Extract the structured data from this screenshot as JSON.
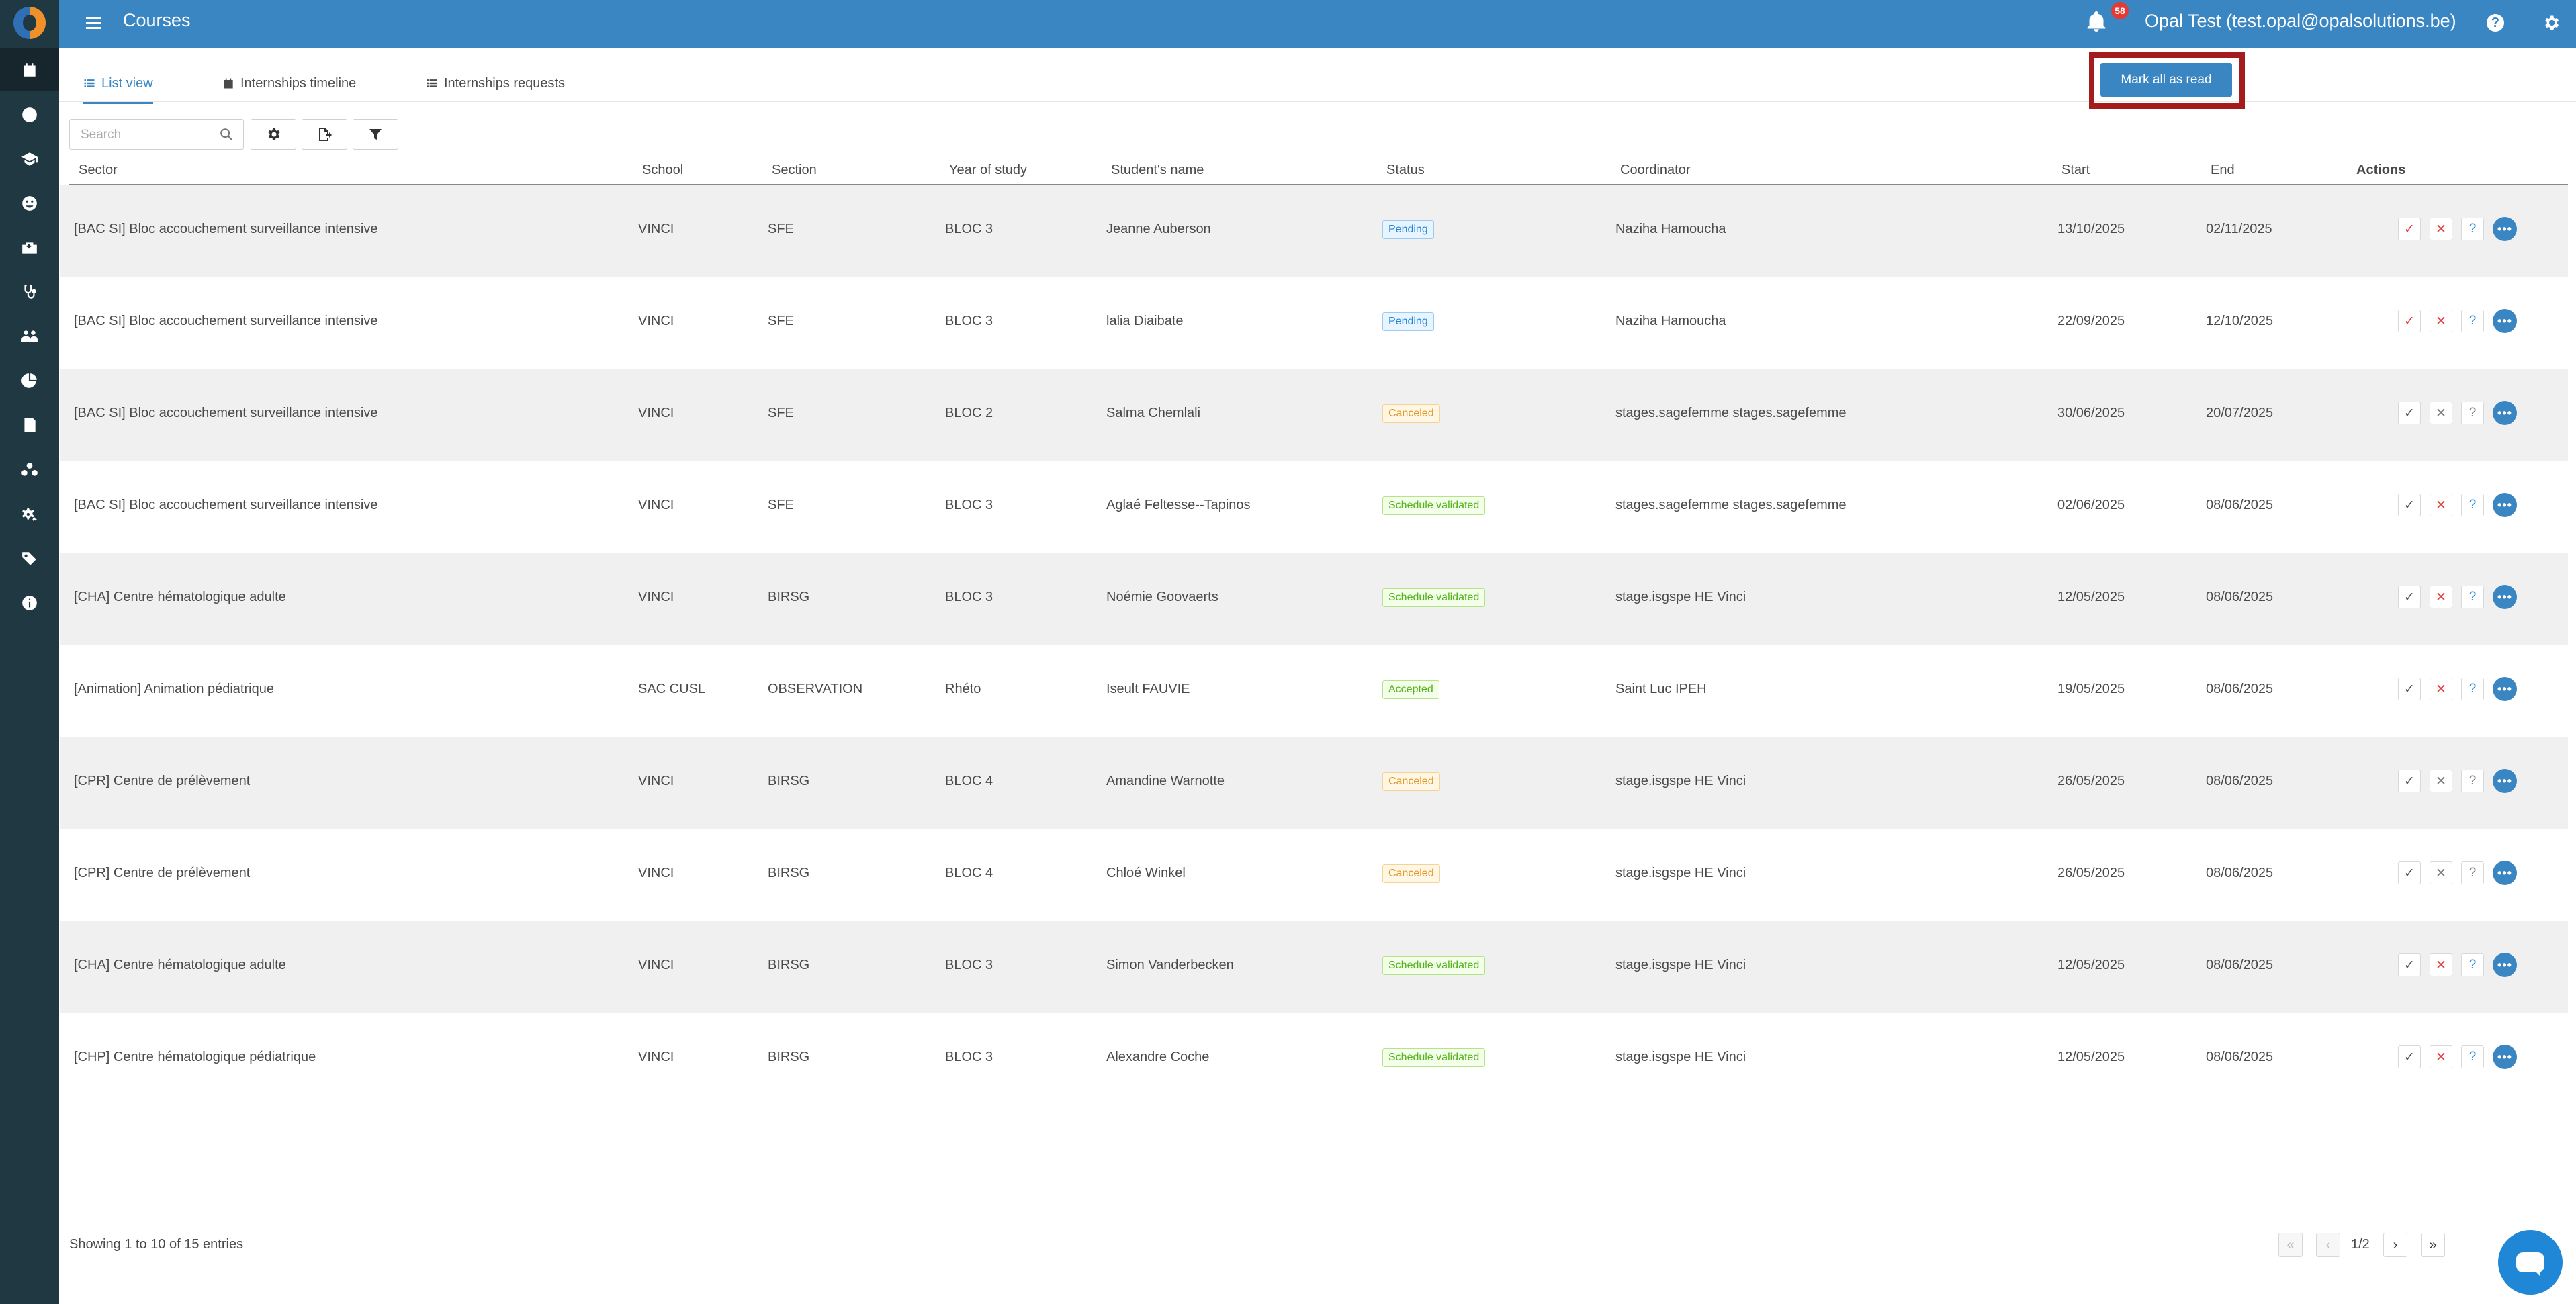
{
  "header": {
    "title": "Courses",
    "notification_count": "58",
    "user": "Opal Test (test.opal@opalsolutions.be)",
    "help": "?"
  },
  "sidebar": {
    "items": [
      "calendar-icon",
      "clock-icon",
      "graduation-cap-icon",
      "smile-icon",
      "hospital-icon",
      "stethoscope-icon",
      "users-icon",
      "pie-chart-icon",
      "document-icon",
      "network-icon",
      "cogs-icon",
      "tags-icon",
      "info-icon"
    ],
    "active_index": 0
  },
  "tabs": [
    {
      "label": "List view",
      "icon": "list-icon",
      "active": true
    },
    {
      "label": "Internships timeline",
      "icon": "calendar-icon",
      "active": false
    },
    {
      "label": "Internships requests",
      "icon": "list-icon",
      "active": false
    }
  ],
  "mark_all_read": "Mark all as read",
  "search": {
    "placeholder": "Search"
  },
  "table": {
    "columns": [
      "Sector",
      "School",
      "Section",
      "Year of study",
      "Student's name",
      "Status",
      "Coordinator",
      "Start",
      "End",
      "Actions"
    ],
    "rows": [
      {
        "sector": "[BAC SI] Bloc accouchement surveillance intensive",
        "school": "VINCI",
        "section": "SFE",
        "year": "BLOC 3",
        "student": "Jeanne Auberson",
        "status": "Pending",
        "coordinator": "Naziha Hamoucha",
        "start": "13/10/2025",
        "end": "02/11/2025"
      },
      {
        "sector": "[BAC SI] Bloc accouchement surveillance intensive",
        "school": "VINCI",
        "section": "SFE",
        "year": "BLOC 3",
        "student": "lalia Diaibate",
        "status": "Pending",
        "coordinator": "Naziha Hamoucha",
        "start": "22/09/2025",
        "end": "12/10/2025"
      },
      {
        "sector": "[BAC SI] Bloc accouchement surveillance intensive",
        "school": "VINCI",
        "section": "SFE",
        "year": "BLOC 2",
        "student": "Salma Chemlali",
        "status": "Canceled",
        "coordinator": "stages.sagefemme stages.sagefemme",
        "start": "30/06/2025",
        "end": "20/07/2025"
      },
      {
        "sector": "[BAC SI] Bloc accouchement surveillance intensive",
        "school": "VINCI",
        "section": "SFE",
        "year": "BLOC 3",
        "student": "Aglaé Feltesse--Tapinos",
        "status": "Schedule validated",
        "coordinator": "stages.sagefemme stages.sagefemme",
        "start": "02/06/2025",
        "end": "08/06/2025"
      },
      {
        "sector": "[CHA] Centre hématologique adulte",
        "school": "VINCI",
        "section": "BIRSG",
        "year": "BLOC 3",
        "student": "Noémie Goovaerts",
        "status": "Schedule validated",
        "coordinator": "stage.isgspe HE Vinci",
        "start": "12/05/2025",
        "end": "08/06/2025"
      },
      {
        "sector": "[Animation] Animation pédiatrique",
        "school": "SAC CUSL",
        "section": "OBSERVATION",
        "year": "Rhéto",
        "student": "Iseult FAUVIE",
        "status": "Accepted",
        "coordinator": "Saint Luc IPEH",
        "start": "19/05/2025",
        "end": "08/06/2025"
      },
      {
        "sector": "[CPR] Centre de prélèvement",
        "school": "VINCI",
        "section": "BIRSG",
        "year": "BLOC 4",
        "student": "Amandine Warnotte",
        "status": "Canceled",
        "coordinator": "stage.isgspe HE Vinci",
        "start": "26/05/2025",
        "end": "08/06/2025"
      },
      {
        "sector": "[CPR] Centre de prélèvement",
        "school": "VINCI",
        "section": "BIRSG",
        "year": "BLOC 4",
        "student": "Chloé Winkel",
        "status": "Canceled",
        "coordinator": "stage.isgspe HE Vinci",
        "start": "26/05/2025",
        "end": "08/06/2025"
      },
      {
        "sector": "[CHA] Centre hématologique adulte",
        "school": "VINCI",
        "section": "BIRSG",
        "year": "BLOC 3",
        "student": "Simon Vanderbecken",
        "status": "Schedule validated",
        "coordinator": "stage.isgspe HE Vinci",
        "start": "12/05/2025",
        "end": "08/06/2025"
      },
      {
        "sector": "[CHP] Centre hématologique pédiatrique",
        "school": "VINCI",
        "section": "BIRSG",
        "year": "BLOC 3",
        "student": "Alexandre Coche",
        "status": "Schedule validated",
        "coordinator": "stage.isgspe HE Vinci",
        "start": "12/05/2025",
        "end": "08/06/2025"
      }
    ]
  },
  "footer": {
    "entries": "Showing 1 to 10 of 15 entries",
    "page": "1/2"
  },
  "colors": {
    "primary": "#3a86c3",
    "sidebar": "#1f3842",
    "highlight_border": "#a51c1c",
    "pending": "#1f87d6",
    "canceled": "#e69522",
    "validated": "#53b31c",
    "reject": "#e53935"
  }
}
